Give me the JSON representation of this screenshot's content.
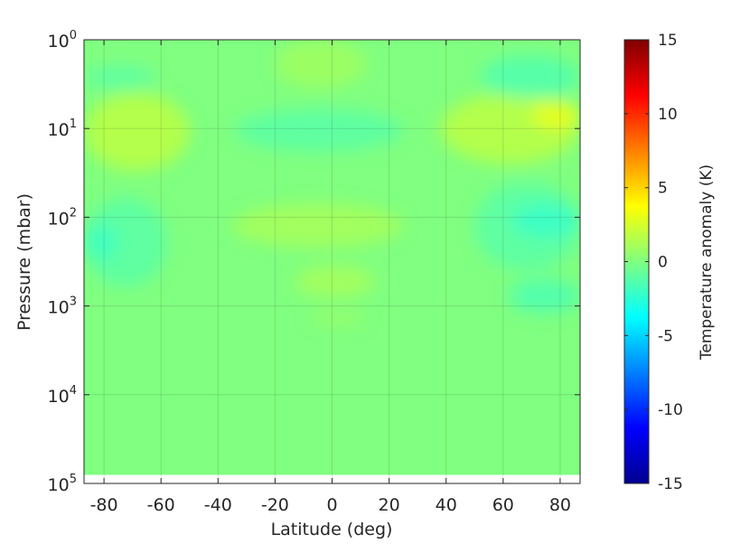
{
  "chart_data": {
    "type": "heatmap",
    "title": "",
    "xlabel": "Latitude (deg)",
    "ylabel": "Pressure (mbar)",
    "x_ticks": [
      -80,
      -60,
      -40,
      -20,
      0,
      20,
      40,
      60,
      80
    ],
    "x_tick_labels": [
      "-80",
      "-60",
      "-40",
      "-20",
      "0",
      "20",
      "40",
      "60",
      "80"
    ],
    "xlim": [
      -87,
      87
    ],
    "y_scale": "log",
    "y_ticks": [
      1,
      10,
      100,
      1000,
      10000,
      100000
    ],
    "y_tick_labels": [
      {
        "base": "10",
        "exp": "0"
      },
      {
        "base": "10",
        "exp": "1"
      },
      {
        "base": "10",
        "exp": "2"
      },
      {
        "base": "10",
        "exp": "3"
      },
      {
        "base": "10",
        "exp": "4"
      },
      {
        "base": "10",
        "exp": "5"
      }
    ],
    "ylim": [
      1,
      100000
    ],
    "y_reversed": true,
    "data_floor_pressure": 80000,
    "grid": true,
    "colormap": "jet",
    "colorbar": {
      "label": "Temperature anomaly (K)",
      "range": [
        -15,
        15
      ],
      "ticks": [
        15,
        10,
        5,
        0,
        -5,
        -10,
        -15
      ],
      "tick_labels": [
        "15",
        "10",
        "5",
        "0",
        "-5",
        "-10",
        "-15"
      ]
    },
    "background_value": 0,
    "anomalies": [
      {
        "lat_min": -87,
        "lat_max": -68,
        "p_min": 7,
        "p_max": 18,
        "value": 3.5
      },
      {
        "lat_min": -87,
        "lat_max": -50,
        "p_min": 4,
        "p_max": 30,
        "value": 1.5
      },
      {
        "lat_min": -87,
        "lat_max": -62,
        "p_min": 2,
        "p_max": 3.5,
        "value": -1
      },
      {
        "lat_min": -87,
        "lat_max": -58,
        "p_min": 60,
        "p_max": 600,
        "value": -1
      },
      {
        "lat_min": -87,
        "lat_max": -75,
        "p_min": 120,
        "p_max": 300,
        "value": -1.8
      },
      {
        "lat_min": -34,
        "lat_max": 25,
        "p_min": 6,
        "p_max": 18,
        "value": -1
      },
      {
        "lat_min": -20,
        "lat_max": 12,
        "p_min": 1,
        "p_max": 3.5,
        "value": 0.8
      },
      {
        "lat_min": -35,
        "lat_max": 25,
        "p_min": 70,
        "p_max": 220,
        "value": 1
      },
      {
        "lat_min": -13,
        "lat_max": 15,
        "p_min": 350,
        "p_max": 800,
        "value": 1
      },
      {
        "lat_min": -8,
        "lat_max": 12,
        "p_min": 1200,
        "p_max": 1600,
        "value": 0.8
      },
      {
        "lat_min": 38,
        "lat_max": 87,
        "p_min": 4,
        "p_max": 25,
        "value": 1.5
      },
      {
        "lat_min": 70,
        "lat_max": 87,
        "p_min": 5,
        "p_max": 10,
        "value": 3
      },
      {
        "lat_min": 52,
        "lat_max": 87,
        "p_min": 1.5,
        "p_max": 4.5,
        "value": -1.2
      },
      {
        "lat_min": 50,
        "lat_max": 87,
        "p_min": 40,
        "p_max": 400,
        "value": -1
      },
      {
        "lat_min": 63,
        "lat_max": 87,
        "p_min": 70,
        "p_max": 170,
        "value": -2
      },
      {
        "lat_min": 62,
        "lat_max": 87,
        "p_min": 500,
        "p_max": 1200,
        "value": -1.3
      }
    ]
  }
}
